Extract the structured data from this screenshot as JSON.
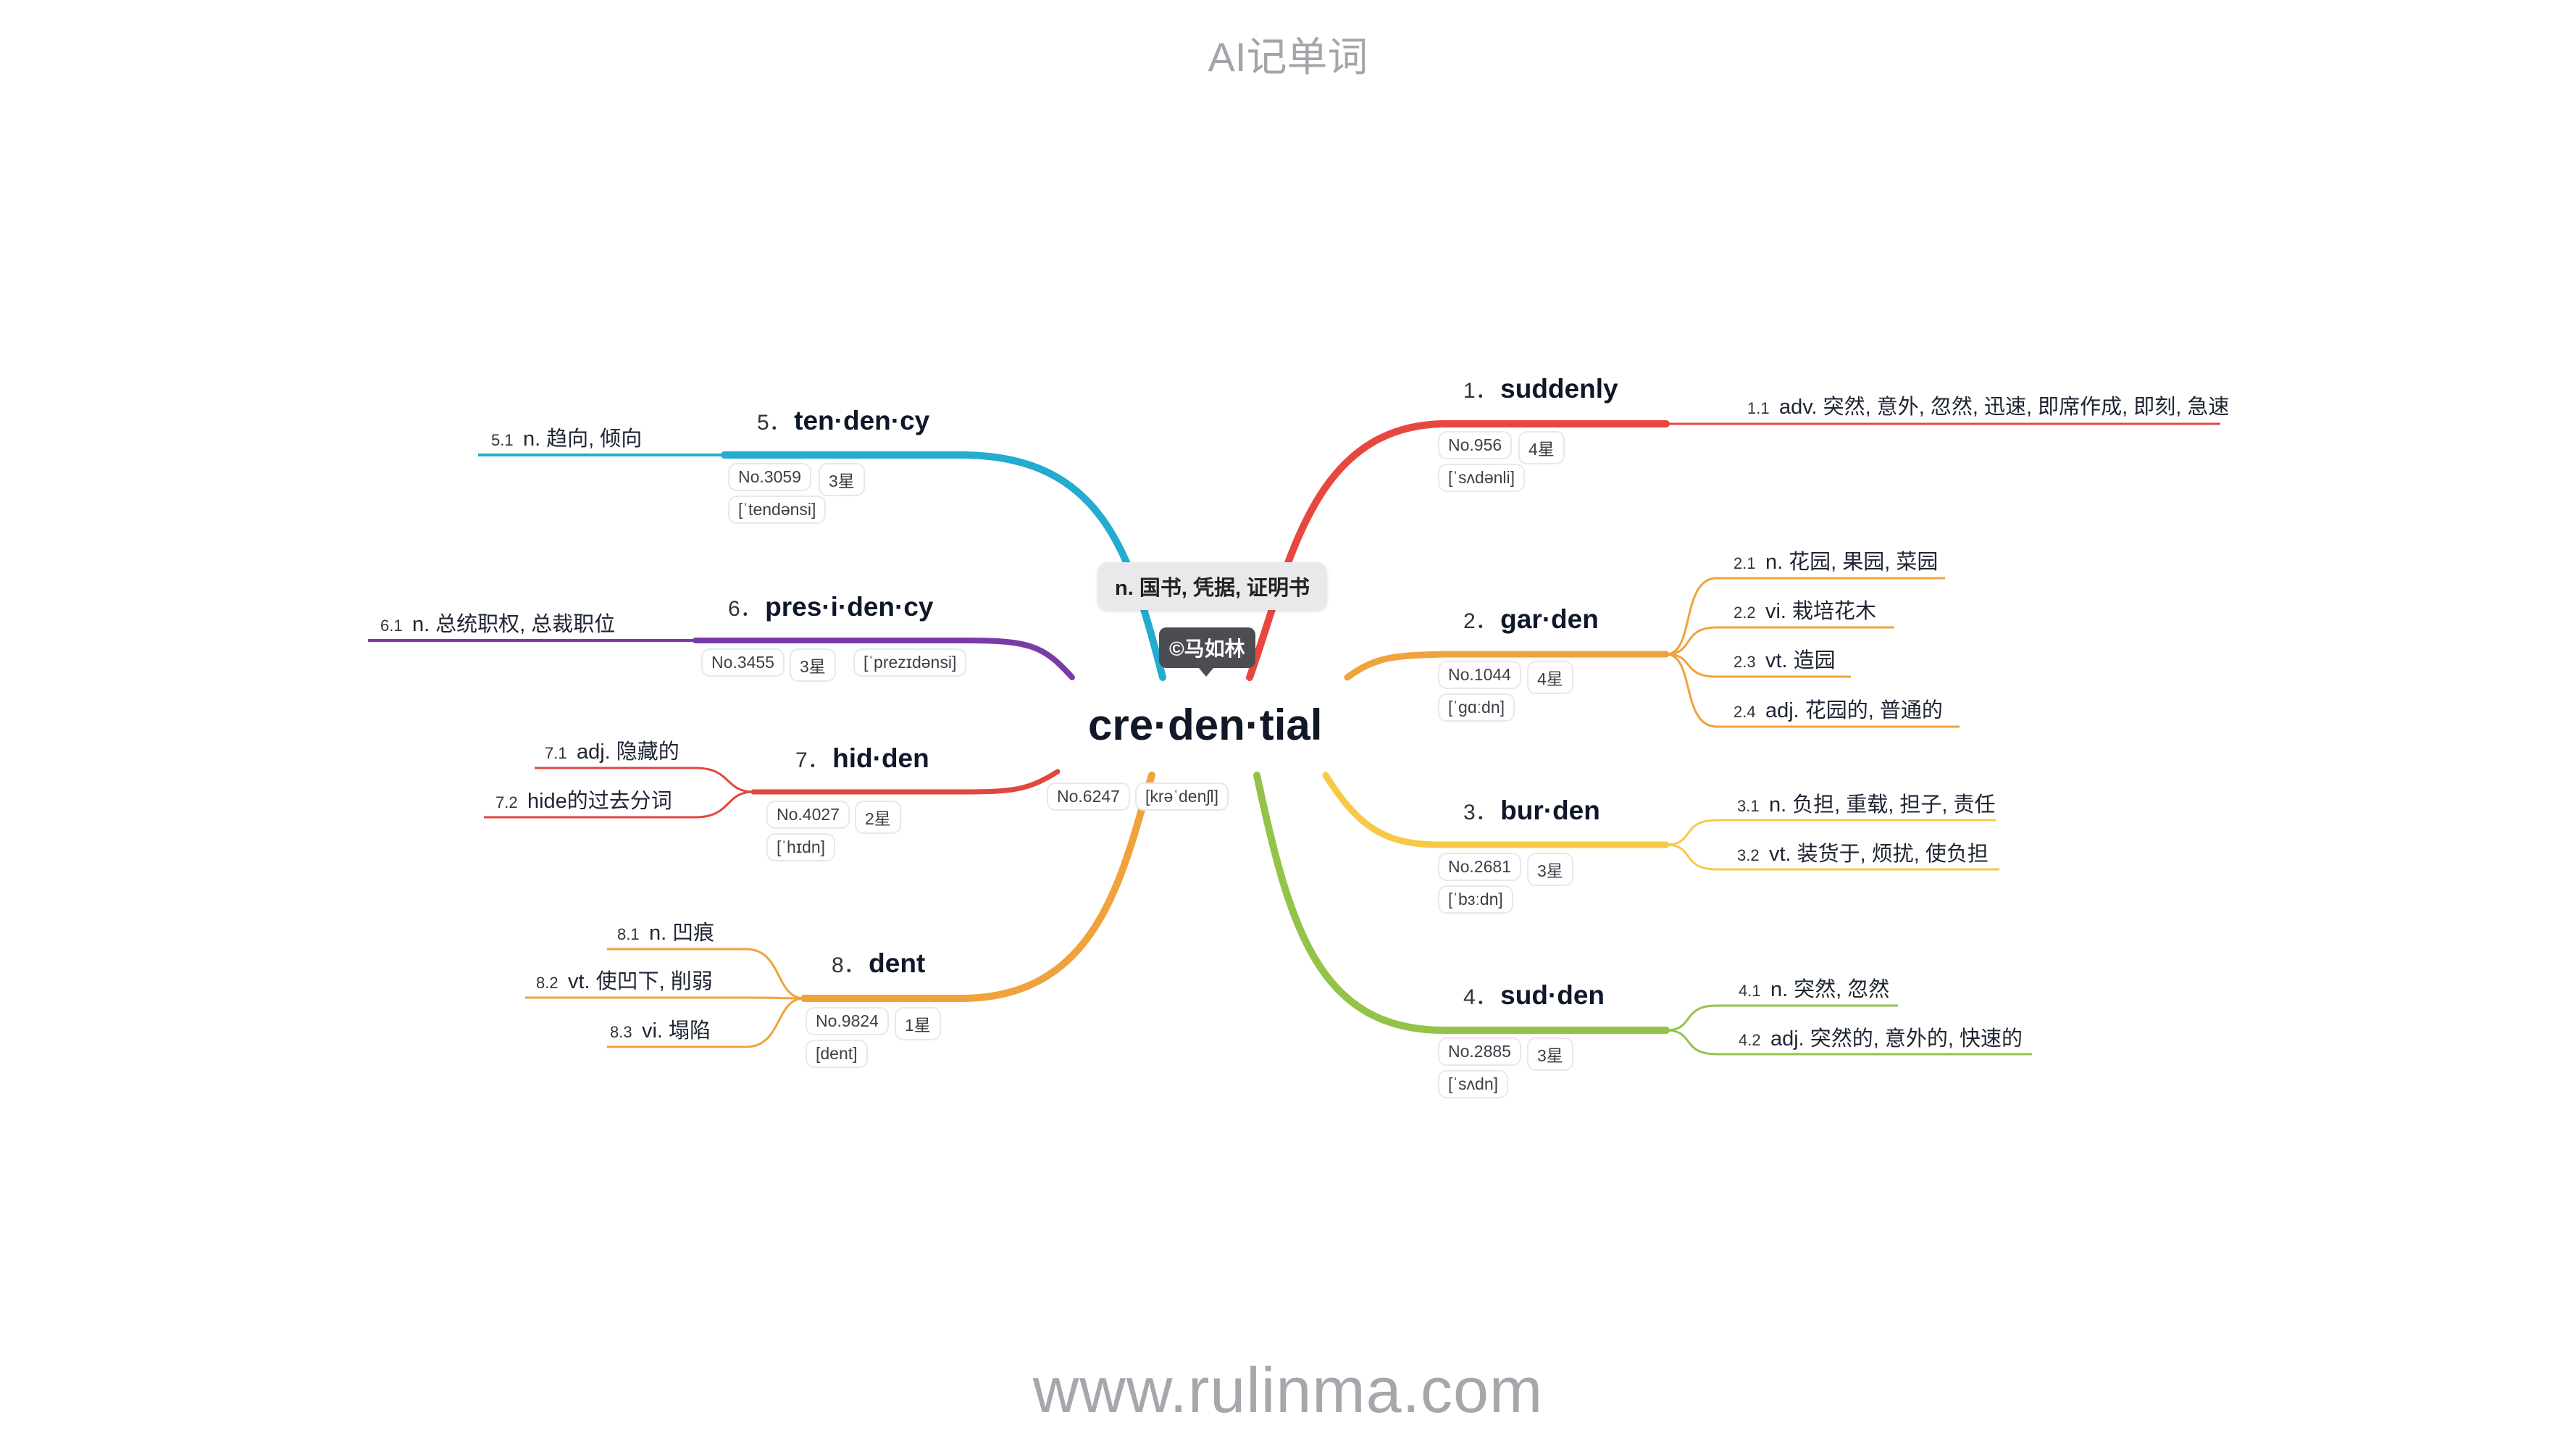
{
  "top_title": "AI记单词",
  "footer": "www.rulinma.com",
  "root": {
    "word": "cre·den·tial",
    "definition": "n. 国书, 凭据, 证明书",
    "copyright": "©马如林",
    "no": "No.6247",
    "phonetic": "[krəˈdenʃl]"
  },
  "branches": [
    {
      "num": "1．",
      "word": "suddenly",
      "no": "No.956",
      "stars": "4星",
      "phonetic": "[ˈsʌdənli]",
      "color": "#e8473f",
      "meanings": [
        {
          "idx": "1.1",
          "text": "adv. 突然, 意外, 忽然, 迅速, 即席作成, 即刻, 急速"
        }
      ]
    },
    {
      "num": "2．",
      "word": "gar·den",
      "no": "No.1044",
      "stars": "4星",
      "phonetic": "[ˈɡɑːdn]",
      "color": "#f0a23c",
      "meanings": [
        {
          "idx": "2.1",
          "text": "n. 花园, 果园, 菜园"
        },
        {
          "idx": "2.2",
          "text": "vi. 栽培花木"
        },
        {
          "idx": "2.3",
          "text": "vt. 造园"
        },
        {
          "idx": "2.4",
          "text": "adj. 花园的, 普通的"
        }
      ]
    },
    {
      "num": "3．",
      "word": "bur·den",
      "no": "No.2681",
      "stars": "3星",
      "phonetic": "[ˈbɜːdn]",
      "color": "#f6ca47",
      "meanings": [
        {
          "idx": "3.1",
          "text": "n. 负担, 重载, 担子, 责任"
        },
        {
          "idx": "3.2",
          "text": "vt. 装货于, 烦扰, 使负担"
        }
      ]
    },
    {
      "num": "4．",
      "word": "sud·den",
      "no": "No.2885",
      "stars": "3星",
      "phonetic": "[ˈsʌdn]",
      "color": "#93c348",
      "meanings": [
        {
          "idx": "4.1",
          "text": "n. 突然, 忽然"
        },
        {
          "idx": "4.2",
          "text": "adj. 突然的, 意外的, 快速的"
        }
      ]
    },
    {
      "num": "5．",
      "word": "ten·den·cy",
      "no": "No.3059",
      "stars": "3星",
      "phonetic": "[ˈtendənsi]",
      "color": "#23abd0",
      "meanings": [
        {
          "idx": "5.1",
          "text": "n. 趋向, 倾向"
        }
      ]
    },
    {
      "num": "6．",
      "word": "pres·i·den·cy",
      "no": "No.3455",
      "stars": "3星",
      "phonetic": "[ˈprezɪdənsi]",
      "color": "#7b3ba6",
      "meanings": [
        {
          "idx": "6.1",
          "text": "n. 总统职权, 总裁职位"
        }
      ]
    },
    {
      "num": "7．",
      "word": "hid·den",
      "no": "No.4027",
      "stars": "2星",
      "phonetic": "[ˈhɪdn]",
      "color": "#e1473e",
      "meanings": [
        {
          "idx": "7.1",
          "text": "adj. 隐藏的"
        },
        {
          "idx": "7.2",
          "text": "hide的过去分词"
        }
      ]
    },
    {
      "num": "8．",
      "word": "dent",
      "no": "No.9824",
      "stars": "1星",
      "phonetic": "[dent]",
      "color": "#f0a23c",
      "meanings": [
        {
          "idx": "8.1",
          "text": "n. 凹痕"
        },
        {
          "idx": "8.2",
          "text": "vt. 使凹下, 削弱"
        },
        {
          "idx": "8.3",
          "text": "vi. 塌陷"
        }
      ]
    }
  ]
}
